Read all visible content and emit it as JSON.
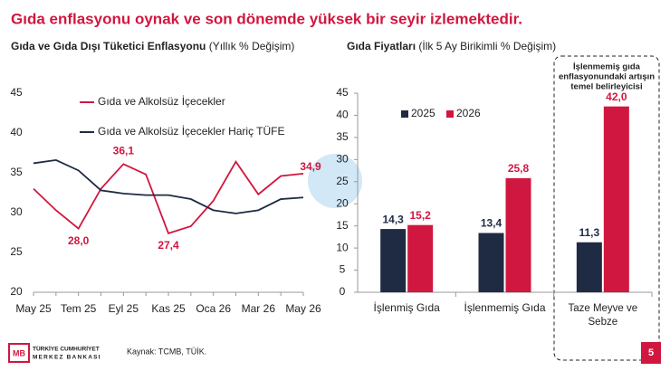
{
  "header": {
    "title": "Gıda enflasyonu oynak ve son dönemde yüksek bir seyir izlemektedir."
  },
  "footer": {
    "source": "Kaynak: TCMB, TÜİK.",
    "bank_name": [
      "TÜRKİYE CUMHURİYET",
      "MERKEZ BANKASI"
    ],
    "page": "5"
  },
  "chart_data": [
    {
      "type": "line",
      "title": "Gıda ve Gıda Dışı Tüketici Enflasyonu",
      "subtitle": "(Yıllık % Değişim)",
      "categories": [
        "May 25",
        null,
        "Tem 25",
        null,
        "Eyl 25",
        null,
        "Kas 25",
        null,
        "Oca 26",
        null,
        "Mar 26",
        null,
        "May 26"
      ],
      "series": [
        {
          "name": "Gıda ve Alkolsüz İçecekler",
          "color": "#d0173f",
          "values": [
            33.0,
            30.3,
            28.0,
            33.0,
            36.1,
            34.8,
            27.4,
            28.3,
            31.5,
            36.4,
            32.3,
            34.6,
            34.9
          ],
          "value_labels": [
            null,
            null,
            "28,0",
            null,
            "36,1",
            null,
            "27,4",
            null,
            null,
            null,
            null,
            null,
            "34,9"
          ]
        },
        {
          "name": "Gıda ve Alkolsüz İçecekler Hariç TÜFE",
          "color": "#1f2b43",
          "values": [
            36.2,
            36.6,
            35.3,
            32.8,
            32.4,
            32.2,
            32.2,
            31.7,
            30.3,
            29.9,
            30.3,
            31.7,
            31.9
          ]
        }
      ],
      "ylim": [
        20,
        45
      ],
      "yticks": [
        20,
        25,
        30,
        35,
        40,
        45
      ]
    },
    {
      "type": "bar",
      "title": "Gıda Fiyatları",
      "subtitle": "(İlk 5 Ay Birikimli % Değişim)",
      "categories": [
        "İşlenmiş Gıda",
        "İşlenmemiş Gıda",
        "Taze Meyve ve Sebze"
      ],
      "series": [
        {
          "name": "2025",
          "color": "#1f2b43",
          "values": [
            14.3,
            13.4,
            11.3
          ],
          "value_labels": [
            "14,3",
            "13,4",
            "11,3"
          ]
        },
        {
          "name": "2026",
          "color": "#d0173f",
          "values": [
            15.2,
            25.8,
            42.0
          ],
          "value_labels": [
            "15,2",
            "25,8",
            "42,0"
          ]
        }
      ],
      "ylim": [
        0,
        45
      ],
      "yticks": [
        0,
        5,
        10,
        15,
        20,
        25,
        30,
        35,
        40,
        45
      ],
      "annotation": [
        "İşlenmemiş gıda",
        "enflasyonundaki artışın",
        "temel belirleyicisi"
      ]
    }
  ]
}
